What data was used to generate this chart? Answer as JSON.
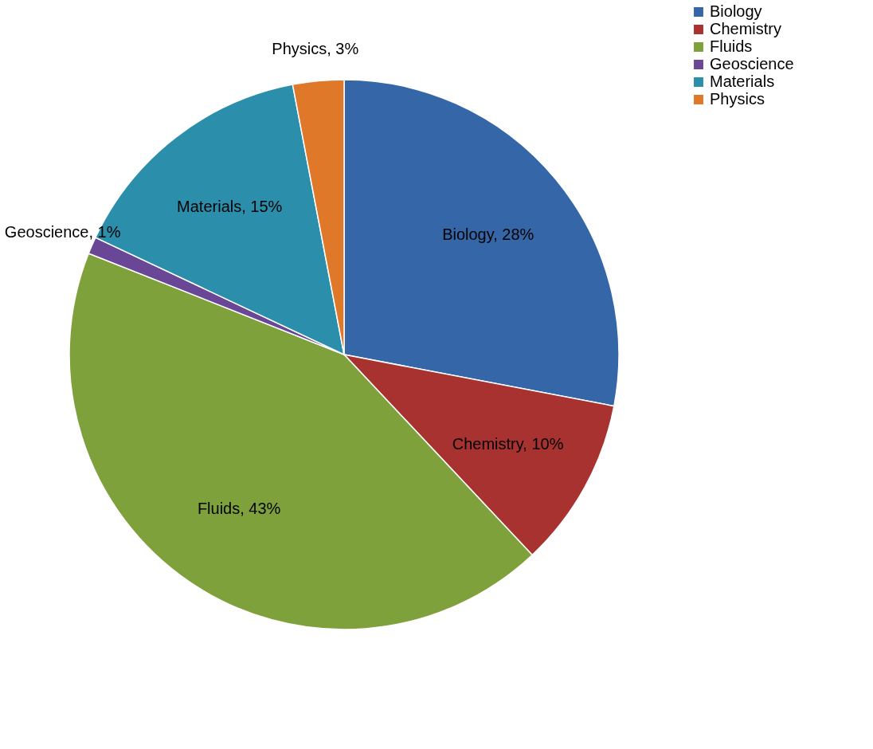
{
  "chart_data": {
    "type": "pie",
    "categories": [
      "Biology",
      "Chemistry",
      "Fluids",
      "Geoscience",
      "Materials",
      "Physics"
    ],
    "values": [
      28,
      10,
      43,
      1,
      15,
      3
    ],
    "colors": [
      "#3567a8",
      "#a8322f",
      "#7fa13c",
      "#6a4796",
      "#2b8fac",
      "#e0782a"
    ],
    "value_labels": [
      "Biology, 28%",
      "Chemistry, 10%",
      "Fluids, 43%",
      "Geoscience, 1%",
      "Materials, 15%",
      "Physics, 3%"
    ],
    "legend": "right"
  }
}
